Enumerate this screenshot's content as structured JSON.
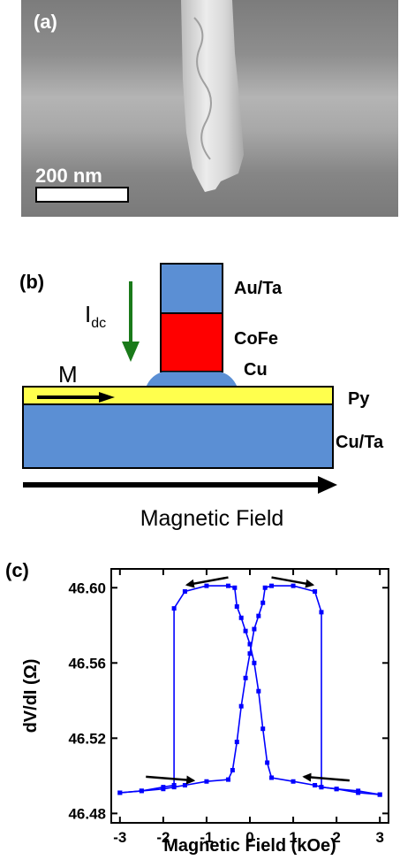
{
  "panel_a": {
    "label": "(a)",
    "scale_bar_text": "200 nm"
  },
  "panel_b": {
    "label": "(b)",
    "current_label_main": "I",
    "current_label_sub": "dc",
    "magnetization_label": "M",
    "layer_labels": [
      "Au/Ta",
      "CoFe",
      "Cu",
      "Py",
      "Cu/Ta"
    ],
    "field_label": "Magnetic Field",
    "colors": {
      "au_ta": "#5b8fd4",
      "cofe": "#ff0000",
      "cu_cap": "#5b8fd4",
      "py": "#ffff4d",
      "cu_ta": "#5b8fd4",
      "current_arrow": "#1a7a1a"
    }
  },
  "panel_c": {
    "label": "(c)",
    "chart_data": {
      "type": "line",
      "xlabel": "Magnetic Field (kOe)",
      "ylabel": "dV/dI (Ω)",
      "xlim": [
        -3.2,
        3.2
      ],
      "ylim": [
        46.475,
        46.61
      ],
      "xticks": [
        -3,
        -2,
        -1,
        0,
        1,
        2,
        3
      ],
      "yticks": [
        46.48,
        46.52,
        46.56,
        46.6
      ],
      "ytick_labels": [
        "46.48",
        "46.52",
        "46.56",
        "46.60"
      ],
      "series": [
        {
          "color": "#0000ff",
          "x": [
            -3.0,
            -2.5,
            -2.0,
            -1.75,
            -1.75,
            -1.5,
            -1.0,
            -0.5,
            -0.35,
            -0.3,
            -0.2,
            -0.1,
            0.0,
            0.1,
            0.2,
            0.3,
            0.4,
            0.5,
            1.0,
            1.5,
            1.65,
            1.65,
            2.0,
            2.5,
            3.0
          ],
          "y": [
            46.491,
            46.492,
            46.494,
            46.495,
            46.589,
            46.598,
            46.601,
            46.601,
            46.6,
            46.59,
            46.584,
            46.577,
            46.57,
            46.56,
            46.545,
            46.525,
            46.507,
            46.499,
            46.497,
            46.495,
            46.494,
            46.494,
            46.493,
            46.491,
            46.49
          ]
        },
        {
          "color": "#0000ff",
          "x": [
            3.0,
            2.5,
            2.0,
            1.65,
            1.65,
            1.5,
            1.0,
            0.5,
            0.35,
            0.3,
            0.2,
            0.1,
            0.0,
            -0.1,
            -0.2,
            -0.3,
            -0.4,
            -0.5,
            -1.0,
            -1.5,
            -1.75,
            -2.0,
            -2.5,
            -3.0
          ],
          "y": [
            46.49,
            46.492,
            46.493,
            46.494,
            46.587,
            46.598,
            46.601,
            46.601,
            46.6,
            46.592,
            46.585,
            46.578,
            46.565,
            46.552,
            46.537,
            46.518,
            46.503,
            46.498,
            46.497,
            46.495,
            46.494,
            46.493,
            46.492,
            46.491
          ]
        }
      ],
      "arrows": [
        {
          "from": [
            -0.5,
            46.6055
          ],
          "to": [
            -1.45,
            46.6015
          ]
        },
        {
          "from": [
            0.5,
            46.6055
          ],
          "to": [
            1.45,
            46.6015
          ]
        },
        {
          "from": [
            -2.4,
            46.4995
          ],
          "to": [
            -1.3,
            46.4975
          ]
        },
        {
          "from": [
            2.3,
            46.4975
          ],
          "to": [
            1.25,
            46.4995
          ]
        }
      ],
      "grid": false
    }
  }
}
